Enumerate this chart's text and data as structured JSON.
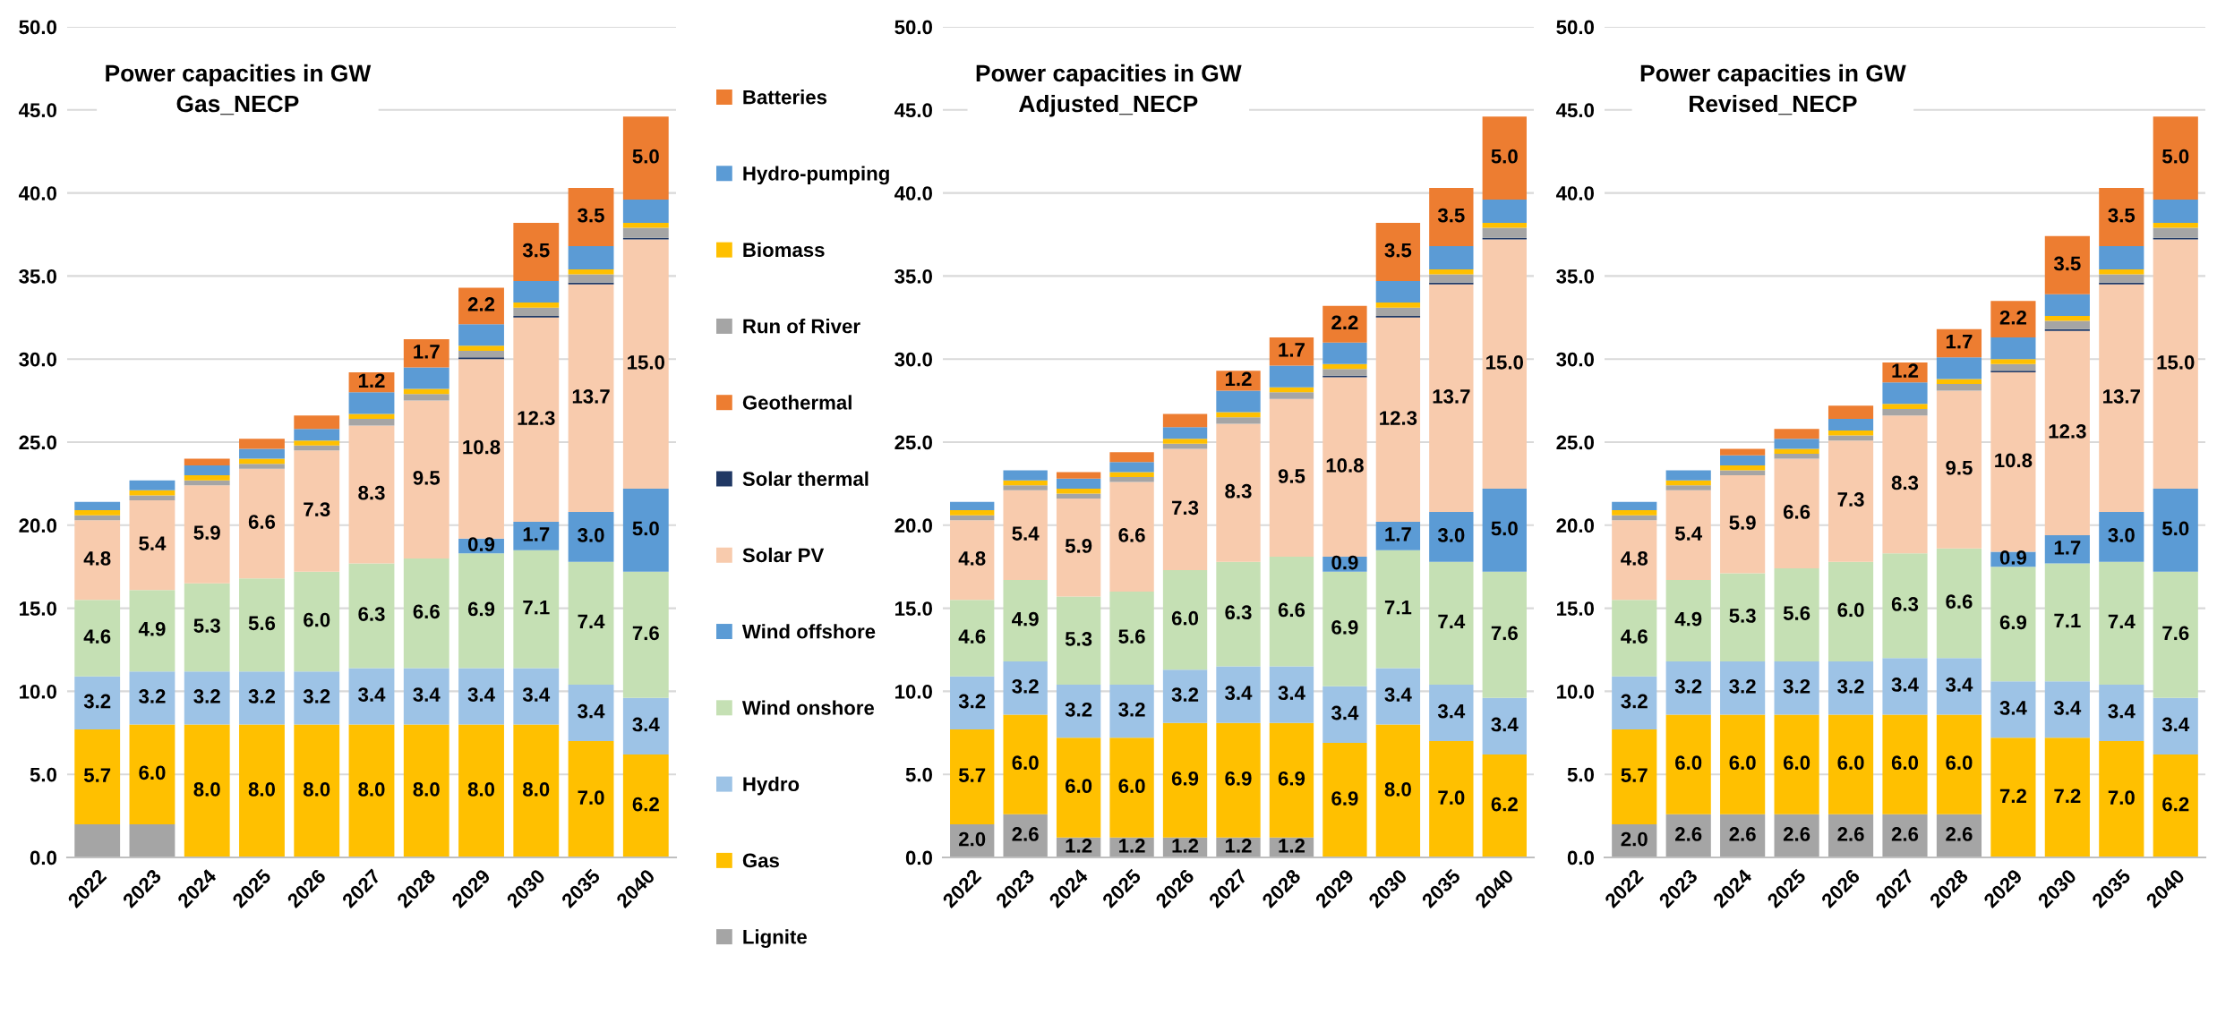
{
  "chart_data": [
    {
      "type": "bar",
      "stacked": true,
      "title": "Power capacities in GW",
      "subtitle": "Gas_NECP",
      "categories": [
        "2022",
        "2023",
        "2024",
        "2025",
        "2026",
        "2027",
        "2028",
        "2029",
        "2030",
        "2035",
        "2040"
      ],
      "ylim": [
        0,
        50
      ],
      "yticks": [
        {
          "value": 0,
          "label": "0.0"
        },
        {
          "value": 5,
          "label": "5.0"
        },
        {
          "value": 10,
          "label": "10.0"
        },
        {
          "value": 15,
          "label": "15.0"
        },
        {
          "value": 20,
          "label": "20.0"
        },
        {
          "value": 25,
          "label": "25.0"
        },
        {
          "value": 30,
          "label": "30.0"
        },
        {
          "value": 35,
          "label": "35.0"
        },
        {
          "value": 40,
          "label": "40.0"
        },
        {
          "value": 45,
          "label": "45.0"
        },
        {
          "value": 50,
          "label": "50.0"
        }
      ],
      "grid": "y",
      "legend": "right",
      "series": [
        {
          "name": "Lignite",
          "color": "#a5a5a5",
          "values": [
            2.0,
            2.0,
            0,
            0,
            0,
            0,
            0,
            0,
            0,
            0,
            0
          ],
          "value_labels": [
            null,
            null,
            null,
            null,
            null,
            null,
            null,
            null,
            null,
            null,
            null
          ]
        },
        {
          "name": "Gas",
          "color": "#ffc000",
          "values": [
            5.7,
            6.0,
            8.0,
            8.0,
            8.0,
            8.0,
            8.0,
            8.0,
            8.0,
            7.0,
            6.2
          ],
          "value_labels": [
            "5.7",
            "6.0",
            "8.0",
            "8.0",
            "8.0",
            "8.0",
            "8.0",
            "8.0",
            "8.0",
            "7.0",
            "6.2"
          ]
        },
        {
          "name": "Hydro",
          "color": "#9dc3e6",
          "values": [
            3.2,
            3.2,
            3.2,
            3.2,
            3.2,
            3.4,
            3.4,
            3.4,
            3.4,
            3.4,
            3.4
          ],
          "value_labels": [
            "3.2",
            "3.2",
            "3.2",
            "3.2",
            "3.2",
            "3.4",
            "3.4",
            "3.4",
            "3.4",
            "3.4",
            "3.4"
          ]
        },
        {
          "name": "Wind onshore",
          "color": "#c5e0b4",
          "values": [
            4.6,
            4.9,
            5.3,
            5.6,
            6.0,
            6.3,
            6.6,
            6.9,
            7.1,
            7.4,
            7.6
          ],
          "value_labels": [
            "4.6",
            "4.9",
            "5.3",
            "5.6",
            "6.0",
            "6.3",
            "6.6",
            "6.9",
            "7.1",
            "7.4",
            "7.6"
          ]
        },
        {
          "name": "Wind offshore",
          "color": "#5b9bd5",
          "values": [
            0,
            0,
            0,
            0,
            0,
            0,
            0,
            0.9,
            1.7,
            3.0,
            5.0
          ],
          "value_labels": [
            null,
            null,
            null,
            null,
            null,
            null,
            null,
            "0.9",
            "1.7",
            "3.0",
            "5.0"
          ]
        },
        {
          "name": "Solar PV",
          "color": "#f8cbad",
          "values": [
            4.8,
            5.4,
            5.9,
            6.6,
            7.3,
            8.3,
            9.5,
            10.8,
            12.3,
            13.7,
            15.0
          ],
          "value_labels": [
            "4.8",
            "5.4",
            "5.9",
            "6.6",
            "7.3",
            "8.3",
            "9.5",
            "10.8",
            "12.3",
            "13.7",
            "15.0"
          ]
        },
        {
          "name": "Solar thermal",
          "color": "#203864",
          "values": [
            0,
            0,
            0,
            0,
            0,
            0,
            0,
            0.1,
            0.1,
            0.1,
            0.1
          ]
        },
        {
          "name": "Geothermal",
          "color": "#ed7d31",
          "values": [
            0,
            0,
            0,
            0,
            0,
            0,
            0,
            0,
            0,
            0,
            0
          ]
        },
        {
          "name": "Run of River",
          "color": "#a5a5a5",
          "values": [
            0.3,
            0.3,
            0.3,
            0.3,
            0.3,
            0.4,
            0.4,
            0.4,
            0.5,
            0.5,
            0.6
          ]
        },
        {
          "name": "Biomass",
          "color": "#ffc000",
          "values": [
            0.3,
            0.3,
            0.3,
            0.3,
            0.3,
            0.3,
            0.3,
            0.3,
            0.3,
            0.3,
            0.3
          ]
        },
        {
          "name": "Hydro-pumping",
          "color": "#5b9bd5",
          "values": [
            0.5,
            0.6,
            0.6,
            0.6,
            0.7,
            1.3,
            1.3,
            1.3,
            1.3,
            1.4,
            1.4
          ]
        },
        {
          "name": "Batteries",
          "color": "#ed7d31",
          "values": [
            0,
            0,
            0.4,
            0.6,
            0.8,
            1.2,
            1.7,
            2.2,
            3.5,
            3.5,
            5.0
          ],
          "value_labels": [
            null,
            null,
            null,
            null,
            null,
            "1.2",
            "1.7",
            "2.2",
            "3.5",
            "3.5",
            "5.0"
          ]
        }
      ]
    },
    {
      "type": "bar",
      "stacked": true,
      "title": "Power capacities in GW",
      "subtitle": "Adjusted_NECP",
      "categories": [
        "2022",
        "2023",
        "2024",
        "2025",
        "2026",
        "2027",
        "2028",
        "2029",
        "2030",
        "2035",
        "2040"
      ],
      "ylim": [
        0,
        50
      ],
      "yticks": [
        {
          "value": 0,
          "label": "0.0"
        },
        {
          "value": 5,
          "label": "5.0"
        },
        {
          "value": 10,
          "label": "10.0"
        },
        {
          "value": 15,
          "label": "15.0"
        },
        {
          "value": 20,
          "label": "20.0"
        },
        {
          "value": 25,
          "label": "25.0"
        },
        {
          "value": 30,
          "label": "30.0"
        },
        {
          "value": 35,
          "label": "35.0"
        },
        {
          "value": 40,
          "label": "40.0"
        },
        {
          "value": 45,
          "label": "45.0"
        },
        {
          "value": 50,
          "label": "50.0"
        }
      ],
      "grid": "y",
      "series": [
        {
          "color": "#a5a5a5",
          "values": [
            2.0,
            2.6,
            1.2,
            1.2,
            1.2,
            1.2,
            1.2,
            0,
            0,
            0,
            0
          ],
          "value_labels": [
            "2.0",
            "2.6",
            "1.2",
            "1.2",
            "1.2",
            "1.2",
            "1.2",
            null,
            null,
            null,
            null
          ]
        },
        {
          "color": "#ffc000",
          "values": [
            5.7,
            6.0,
            6.0,
            6.0,
            6.9,
            6.9,
            6.9,
            6.9,
            8.0,
            7.0,
            6.2
          ],
          "value_labels": [
            "5.7",
            "6.0",
            "6.0",
            "6.0",
            "6.9",
            "6.9",
            "6.9",
            "6.9",
            "8.0",
            "7.0",
            "6.2"
          ]
        },
        {
          "color": "#9dc3e6",
          "values": [
            3.2,
            3.2,
            3.2,
            3.2,
            3.2,
            3.4,
            3.4,
            3.4,
            3.4,
            3.4,
            3.4
          ],
          "value_labels": [
            "3.2",
            "3.2",
            "3.2",
            "3.2",
            "3.2",
            "3.4",
            "3.4",
            "3.4",
            "3.4",
            "3.4",
            "3.4"
          ]
        },
        {
          "color": "#c5e0b4",
          "values": [
            4.6,
            4.9,
            5.3,
            5.6,
            6.0,
            6.3,
            6.6,
            6.9,
            7.1,
            7.4,
            7.6
          ],
          "value_labels": [
            "4.6",
            "4.9",
            "5.3",
            "5.6",
            "6.0",
            "6.3",
            "6.6",
            "6.9",
            "7.1",
            "7.4",
            "7.6"
          ]
        },
        {
          "color": "#5b9bd5",
          "values": [
            0,
            0,
            0,
            0,
            0,
            0,
            0,
            0.9,
            1.7,
            3.0,
            5.0
          ],
          "value_labels": [
            null,
            null,
            null,
            null,
            null,
            null,
            null,
            "0.9",
            "1.7",
            "3.0",
            "5.0"
          ]
        },
        {
          "color": "#f8cbad",
          "values": [
            4.8,
            5.4,
            5.9,
            6.6,
            7.3,
            8.3,
            9.5,
            10.8,
            12.3,
            13.7,
            15.0
          ],
          "value_labels": [
            "4.8",
            "5.4",
            "5.9",
            "6.6",
            "7.3",
            "8.3",
            "9.5",
            "10.8",
            "12.3",
            "13.7",
            "15.0"
          ]
        },
        {
          "color": "#203864",
          "values": [
            0,
            0,
            0,
            0,
            0,
            0,
            0,
            0.1,
            0.1,
            0.1,
            0.1
          ]
        },
        {
          "color": "#ed7d31",
          "values": [
            0,
            0,
            0,
            0,
            0,
            0,
            0,
            0,
            0,
            0,
            0
          ]
        },
        {
          "color": "#a5a5a5",
          "values": [
            0.3,
            0.3,
            0.3,
            0.3,
            0.3,
            0.4,
            0.4,
            0.4,
            0.5,
            0.5,
            0.6
          ]
        },
        {
          "color": "#ffc000",
          "values": [
            0.3,
            0.3,
            0.3,
            0.3,
            0.3,
            0.3,
            0.3,
            0.3,
            0.3,
            0.3,
            0.3
          ]
        },
        {
          "color": "#5b9bd5",
          "values": [
            0.5,
            0.6,
            0.6,
            0.6,
            0.7,
            1.3,
            1.3,
            1.3,
            1.3,
            1.4,
            1.4
          ]
        },
        {
          "color": "#ed7d31",
          "values": [
            0,
            0,
            0.4,
            0.6,
            0.8,
            1.2,
            1.7,
            2.2,
            3.5,
            3.5,
            5.0
          ],
          "value_labels": [
            null,
            null,
            null,
            null,
            null,
            "1.2",
            "1.7",
            "2.2",
            "3.5",
            "3.5",
            "5.0"
          ]
        }
      ]
    },
    {
      "type": "bar",
      "stacked": true,
      "title": "Power capacities in GW",
      "subtitle": "Revised_NECP",
      "categories": [
        "2022",
        "2023",
        "2024",
        "2025",
        "2026",
        "2027",
        "2028",
        "2029",
        "2030",
        "2035",
        "2040"
      ],
      "ylim": [
        0,
        50
      ],
      "yticks": [
        {
          "value": 0,
          "label": "0.0"
        },
        {
          "value": 5,
          "label": "5.0"
        },
        {
          "value": 10,
          "label": "10.0"
        },
        {
          "value": 15,
          "label": "15.0"
        },
        {
          "value": 20,
          "label": "20.0"
        },
        {
          "value": 25,
          "label": "25.0"
        },
        {
          "value": 30,
          "label": "30.0"
        },
        {
          "value": 35,
          "label": "35.0"
        },
        {
          "value": 40,
          "label": "40.0"
        },
        {
          "value": 45,
          "label": "45.0"
        },
        {
          "value": 50,
          "label": "50.0"
        }
      ],
      "grid": "y",
      "series": [
        {
          "color": "#a5a5a5",
          "values": [
            2.0,
            2.6,
            2.6,
            2.6,
            2.6,
            2.6,
            2.6,
            0,
            0,
            0,
            0
          ],
          "value_labels": [
            "2.0",
            "2.6",
            "2.6",
            "2.6",
            "2.6",
            "2.6",
            "2.6",
            null,
            null,
            null,
            null
          ]
        },
        {
          "color": "#ffc000",
          "values": [
            5.7,
            6.0,
            6.0,
            6.0,
            6.0,
            6.0,
            6.0,
            7.2,
            7.2,
            7.0,
            6.2
          ],
          "value_labels": [
            "5.7",
            "6.0",
            "6.0",
            "6.0",
            "6.0",
            "6.0",
            "6.0",
            "7.2",
            "7.2",
            "7.0",
            "6.2"
          ]
        },
        {
          "color": "#9dc3e6",
          "values": [
            3.2,
            3.2,
            3.2,
            3.2,
            3.2,
            3.4,
            3.4,
            3.4,
            3.4,
            3.4,
            3.4
          ],
          "value_labels": [
            "3.2",
            "3.2",
            "3.2",
            "3.2",
            "3.2",
            "3.4",
            "3.4",
            "3.4",
            "3.4",
            "3.4",
            "3.4"
          ]
        },
        {
          "color": "#c5e0b4",
          "values": [
            4.6,
            4.9,
            5.3,
            5.6,
            6.0,
            6.3,
            6.6,
            6.9,
            7.1,
            7.4,
            7.6
          ],
          "value_labels": [
            "4.6",
            "4.9",
            "5.3",
            "5.6",
            "6.0",
            "6.3",
            "6.6",
            "6.9",
            "7.1",
            "7.4",
            "7.6"
          ]
        },
        {
          "color": "#5b9bd5",
          "values": [
            0,
            0,
            0,
            0,
            0,
            0,
            0,
            0.9,
            1.7,
            3.0,
            5.0
          ],
          "value_labels": [
            null,
            null,
            null,
            null,
            null,
            null,
            null,
            "0.9",
            "1.7",
            "3.0",
            "5.0"
          ]
        },
        {
          "color": "#f8cbad",
          "values": [
            4.8,
            5.4,
            5.9,
            6.6,
            7.3,
            8.3,
            9.5,
            10.8,
            12.3,
            13.7,
            15.0
          ],
          "value_labels": [
            "4.8",
            "5.4",
            "5.9",
            "6.6",
            "7.3",
            "8.3",
            "9.5",
            "10.8",
            "12.3",
            "13.7",
            "15.0"
          ]
        },
        {
          "color": "#203864",
          "values": [
            0,
            0,
            0,
            0,
            0,
            0,
            0,
            0.1,
            0.1,
            0.1,
            0.1
          ]
        },
        {
          "color": "#ed7d31",
          "values": [
            0,
            0,
            0,
            0,
            0,
            0,
            0,
            0,
            0,
            0,
            0
          ]
        },
        {
          "color": "#a5a5a5",
          "values": [
            0.3,
            0.3,
            0.3,
            0.3,
            0.3,
            0.4,
            0.4,
            0.4,
            0.5,
            0.5,
            0.6
          ]
        },
        {
          "color": "#ffc000",
          "values": [
            0.3,
            0.3,
            0.3,
            0.3,
            0.3,
            0.3,
            0.3,
            0.3,
            0.3,
            0.3,
            0.3
          ]
        },
        {
          "color": "#5b9bd5",
          "values": [
            0.5,
            0.6,
            0.6,
            0.6,
            0.7,
            1.3,
            1.3,
            1.3,
            1.3,
            1.4,
            1.4
          ]
        },
        {
          "color": "#ed7d31",
          "values": [
            0,
            0,
            0.4,
            0.6,
            0.8,
            1.2,
            1.7,
            2.2,
            3.5,
            3.5,
            5.0
          ],
          "value_labels": [
            null,
            null,
            null,
            null,
            null,
            "1.2",
            "1.7",
            "2.2",
            "3.5",
            "3.5",
            "5.0"
          ]
        }
      ]
    }
  ]
}
